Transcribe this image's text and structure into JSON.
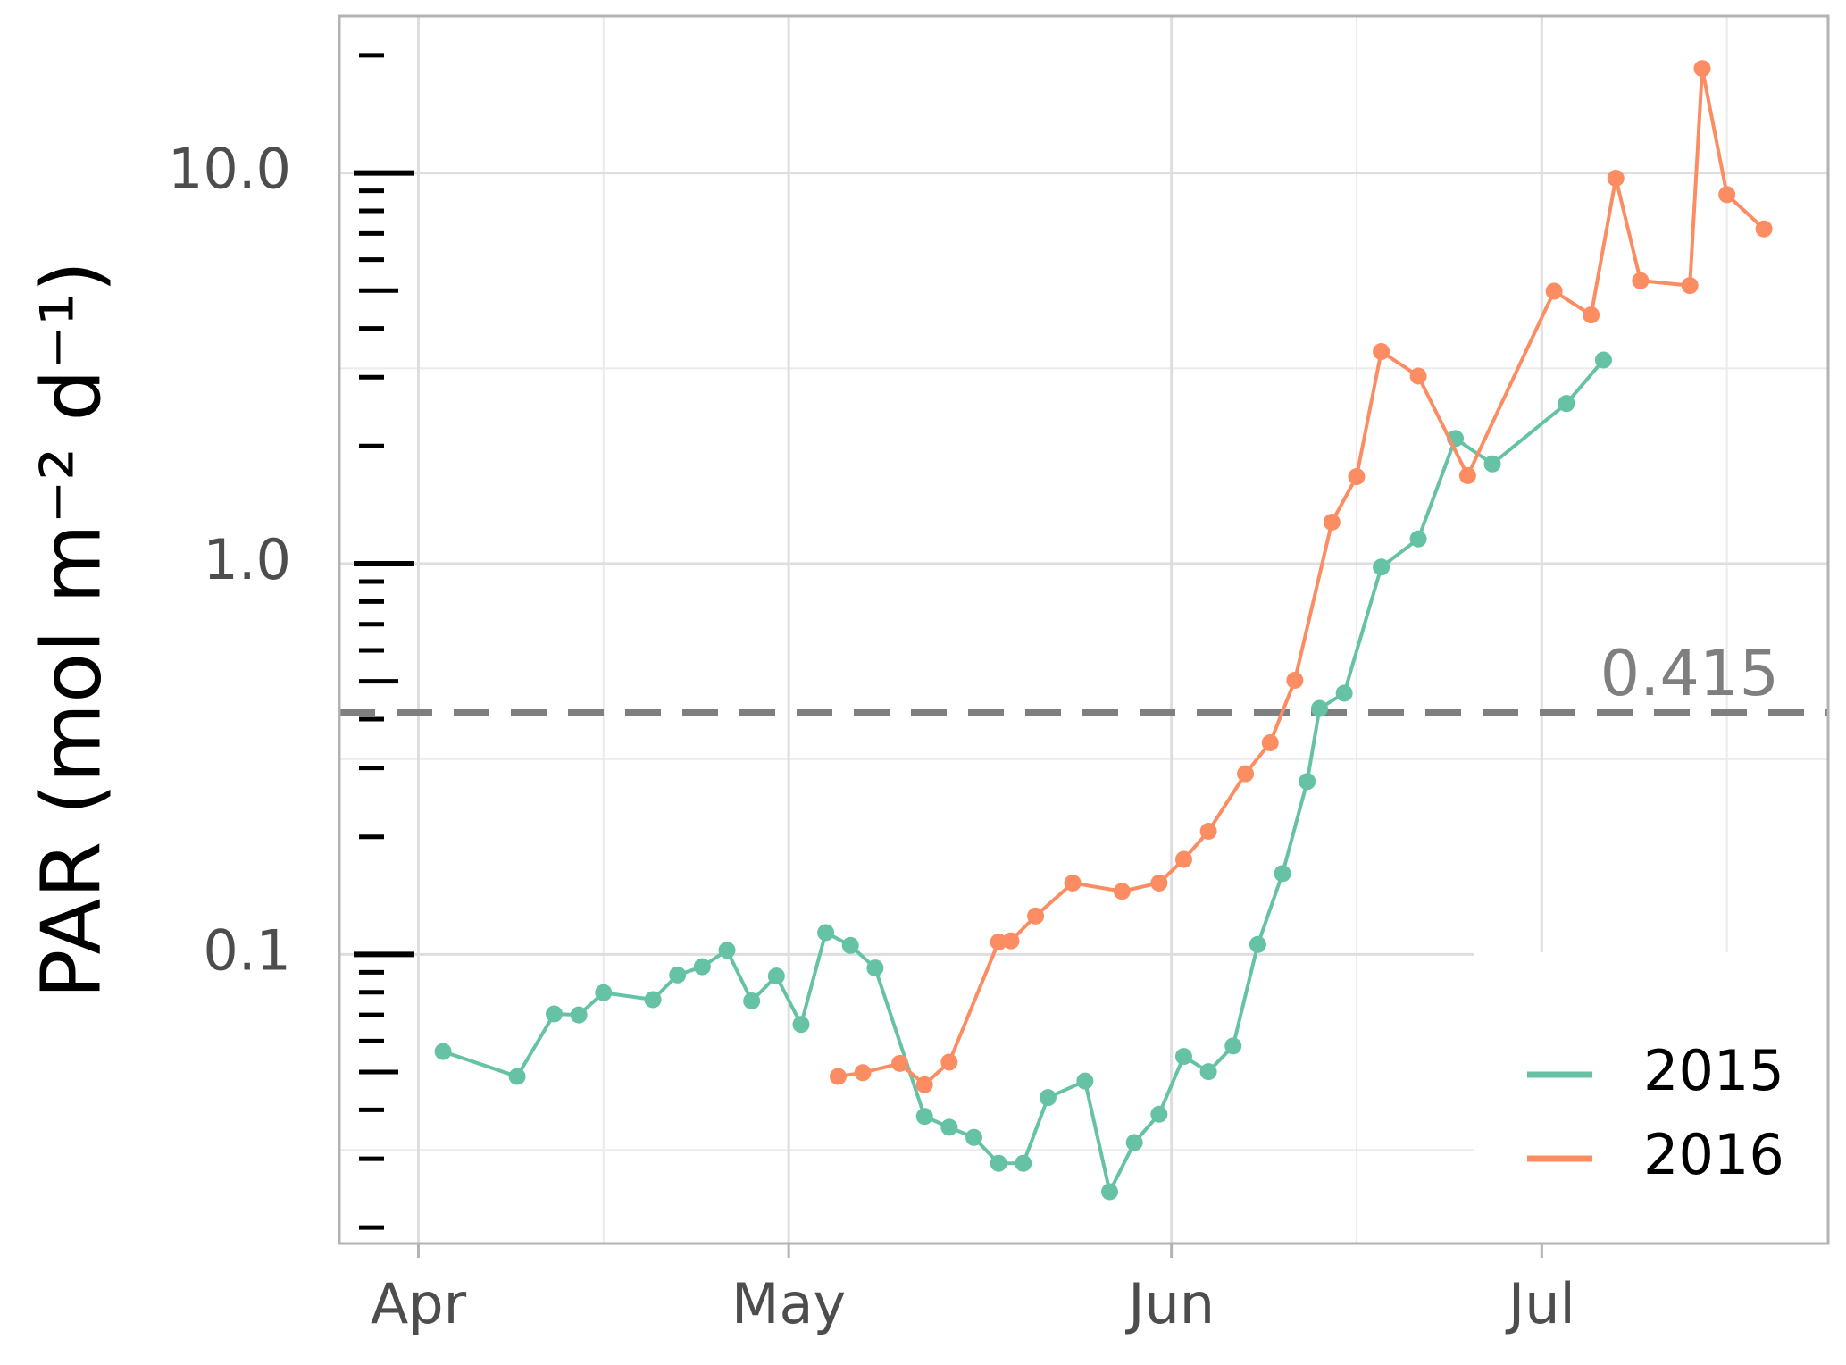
{
  "chart_data": {
    "type": "line",
    "y_label": "PAR (mol m⁻² d⁻¹)",
    "xlim": [
      -6.4,
      114.2
    ],
    "xticks": [
      {
        "value": 0,
        "label": "Apr"
      },
      {
        "value": 30,
        "label": "May"
      },
      {
        "value": 61,
        "label": "Jun"
      },
      {
        "value": 91,
        "label": "Jul"
      }
    ],
    "x_minor_grid": [
      15,
      76,
      106
    ],
    "ylim": [
      0.0182,
      25.2
    ],
    "y_log": true,
    "yticks": [
      0.1,
      {
        "value": 1,
        "label": "1.0"
      },
      {
        "value": 10,
        "label": "10.0"
      }
    ],
    "y_minor_grid": [
      0.0316,
      0.316,
      3.16
    ],
    "y_minor_ticks": [
      0.02,
      0.03,
      0.04,
      0.05,
      0.06,
      0.07,
      0.08,
      0.09,
      0.2,
      0.3,
      0.4,
      0.5,
      0.6,
      0.7,
      0.8,
      0.9,
      2,
      3,
      4,
      5,
      6,
      7,
      8,
      9,
      20
    ],
    "grid": true,
    "legend": "lower right",
    "reference_line": {
      "value": 0.415,
      "label": "0.415",
      "color": "#7f7f7f"
    },
    "series": [
      {
        "name": "2015",
        "color": "#66c2a5",
        "x": [
          2,
          8,
          11,
          13,
          15,
          19,
          21,
          23,
          25,
          27,
          29,
          31,
          33,
          35,
          37,
          41,
          43,
          45,
          47,
          49,
          51,
          54,
          56,
          58,
          60,
          62,
          64,
          66,
          68,
          70,
          72,
          73,
          75,
          78,
          81,
          84,
          87,
          93,
          96
        ],
        "values": [
          0.0564,
          0.0487,
          0.0704,
          0.07,
          0.0798,
          0.0766,
          0.0886,
          0.093,
          0.1025,
          0.076,
          0.088,
          0.0662,
          0.1137,
          0.1054,
          0.0923,
          0.0385,
          0.0361,
          0.034,
          0.0292,
          0.0292,
          0.043,
          0.0474,
          0.0247,
          0.033,
          0.039,
          0.0548,
          0.0501,
          0.0583,
          0.106,
          0.161,
          0.277,
          0.426,
          0.466,
          0.98,
          1.157,
          2.09,
          1.8,
          2.57,
          3.32
        ]
      },
      {
        "name": "2016",
        "color": "#fc8d62",
        "x": [
          34,
          36,
          39,
          41,
          43,
          47,
          48,
          50,
          53,
          57,
          60,
          62,
          64,
          67,
          69,
          71,
          74,
          76,
          78,
          81,
          85,
          92,
          95,
          97,
          99,
          103,
          104,
          106,
          109
        ],
        "values": [
          0.0487,
          0.0498,
          0.0526,
          0.0464,
          0.053,
          0.1076,
          0.1083,
          0.1254,
          0.1523,
          0.145,
          0.1523,
          0.175,
          0.2066,
          0.29,
          0.348,
          0.503,
          1.277,
          1.67,
          3.49,
          3.02,
          1.68,
          4.98,
          4.33,
          9.69,
          5.3,
          5.15,
          18.5,
          8.8,
          7.19
        ]
      }
    ]
  }
}
